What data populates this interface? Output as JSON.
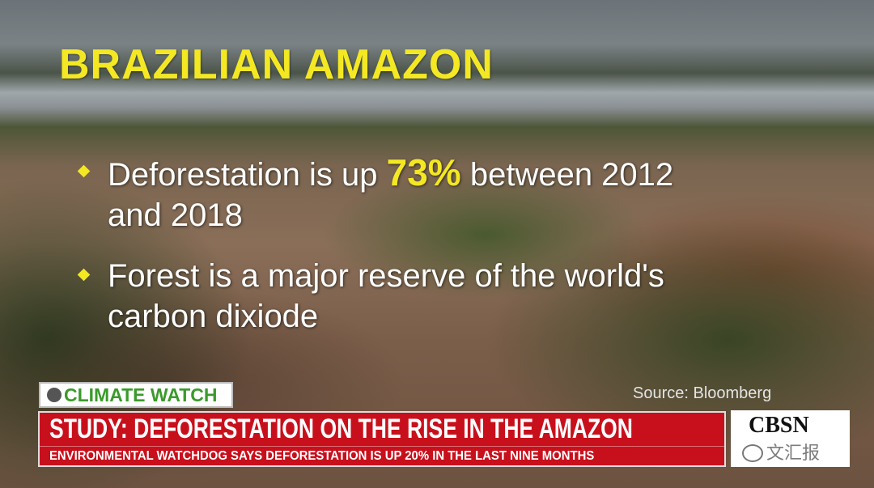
{
  "title": "BRAZILIAN AMAZON",
  "bullets": [
    {
      "before": "Deforestation is up ",
      "highlight": "73%",
      "after": " between 2012 and 2018"
    },
    {
      "before": "Forest is a major reserve of the world's carbon dixiode"
    }
  ],
  "source": "Source: Bloomberg",
  "segment": "CLIMATE WATCH",
  "headline": "STUDY: DEFORESTATION ON THE RISE IN THE AMAZON",
  "subheadline": "ENVIRONMENTAL WATCHDOG SAYS DEFORESTATION IS UP 20% IN THE LAST NINE MONTHS",
  "network": "CBSN",
  "watermark": "文汇报",
  "colors": {
    "title": "#f4e823",
    "banner": "#c8101c",
    "segment_text": "#3a9a2a"
  }
}
